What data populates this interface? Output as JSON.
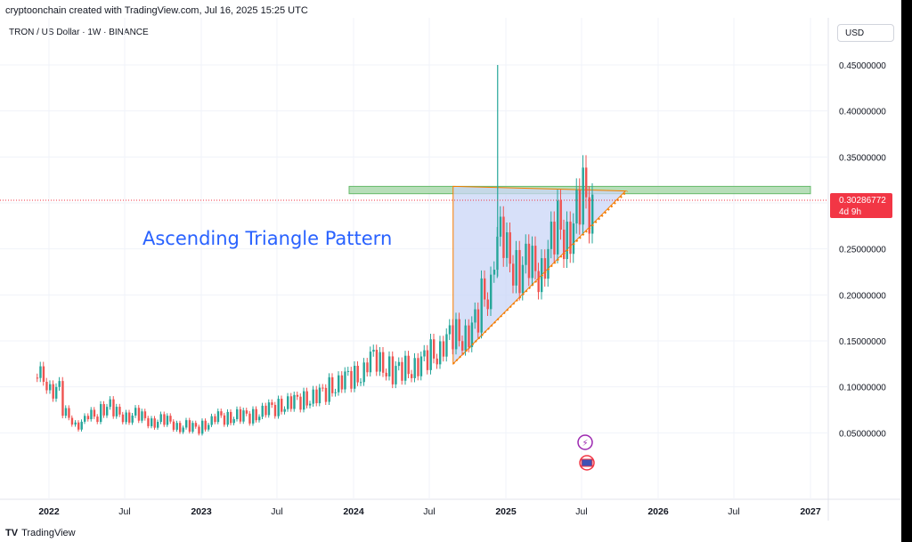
{
  "header": {
    "credit": "cryptoonchain created with TradingView.com, Jul 16, 2025 15:25 UTC",
    "symbol_line": "TRON / US Dollar · 1W · BINANCE",
    "currency_button": "USD"
  },
  "footer": {
    "brand": "TradingView",
    "logo": "TV"
  },
  "annotation": {
    "title": "Ascending Triangle Pattern"
  },
  "colors": {
    "up": "#26a69a",
    "down": "#ef5350",
    "triangle_fill": "#c9d6f7",
    "zone_fill": "#a5d6a7",
    "support_line": "#f57c00",
    "title_blue": "#2962ff",
    "price_badge": "#f23645"
  },
  "chart_data": {
    "type": "candlestick",
    "x_ticks": [
      "2022",
      "Jul",
      "2023",
      "Jul",
      "2024",
      "Jul",
      "2025",
      "Jul",
      "2026",
      "Jul",
      "2027"
    ],
    "y_ticks": [
      "0.45000000",
      "0.40000000",
      "0.35000000",
      "0.30000000",
      "0.25000000",
      "0.20000000",
      "0.15000000",
      "0.10000000",
      "0.05000000"
    ],
    "ylim": [
      0.0,
      0.47
    ],
    "current_price": "0.30286772",
    "countdown": "4d 9h",
    "close_series": [
      [
        "2021-12",
        0.11
      ],
      [
        "2022-01",
        0.105
      ],
      [
        "2022-02",
        0.07
      ],
      [
        "2022-03",
        0.06
      ],
      [
        "2022-04",
        0.065
      ],
      [
        "2022-05",
        0.08
      ],
      [
        "2022-06",
        0.07
      ],
      [
        "2022-07",
        0.07
      ],
      [
        "2022-08",
        0.066
      ],
      [
        "2022-09",
        0.063
      ],
      [
        "2022-10",
        0.062
      ],
      [
        "2022-11",
        0.058
      ],
      [
        "2022-12",
        0.054
      ],
      [
        "2023-01",
        0.059
      ],
      [
        "2023-02",
        0.066
      ],
      [
        "2023-03",
        0.068
      ],
      [
        "2023-04",
        0.067
      ],
      [
        "2023-05",
        0.07
      ],
      [
        "2023-06",
        0.075
      ],
      [
        "2023-07",
        0.08
      ],
      [
        "2023-08",
        0.083
      ],
      [
        "2023-09",
        0.087
      ],
      [
        "2023-10",
        0.09
      ],
      [
        "2023-11",
        0.1
      ],
      [
        "2023-12",
        0.108
      ],
      [
        "2024-01",
        0.11
      ],
      [
        "2024-02",
        0.13
      ],
      [
        "2024-03",
        0.125
      ],
      [
        "2024-04",
        0.115
      ],
      [
        "2024-05",
        0.12
      ],
      [
        "2024-06",
        0.125
      ],
      [
        "2024-07",
        0.135
      ],
      [
        "2024-08",
        0.15
      ],
      [
        "2024-09",
        0.155
      ],
      [
        "2024-10",
        0.16
      ],
      [
        "2024-11",
        0.19
      ],
      [
        "2024-12",
        0.26
      ],
      [
        "2025-01",
        0.24
      ],
      [
        "2025-02",
        0.23
      ],
      [
        "2025-03",
        0.225
      ],
      [
        "2025-04",
        0.245
      ],
      [
        "2025-05",
        0.27
      ],
      [
        "2025-06",
        0.275
      ],
      [
        "2025-07",
        0.3029
      ]
    ],
    "spike_high": {
      "date": "2024-12",
      "value": 0.45
    },
    "resistance_zone": [
      0.31,
      0.318
    ],
    "triangle": {
      "apex_top_left": [
        "2024-08",
        0.318
      ],
      "bottom_left": [
        "2024-08",
        0.125
      ],
      "apex_right": [
        "2025-10",
        0.313
      ]
    },
    "support_line": {
      "from": [
        "2024-08",
        0.125
      ],
      "to": [
        "2025-10",
        0.313
      ]
    }
  }
}
